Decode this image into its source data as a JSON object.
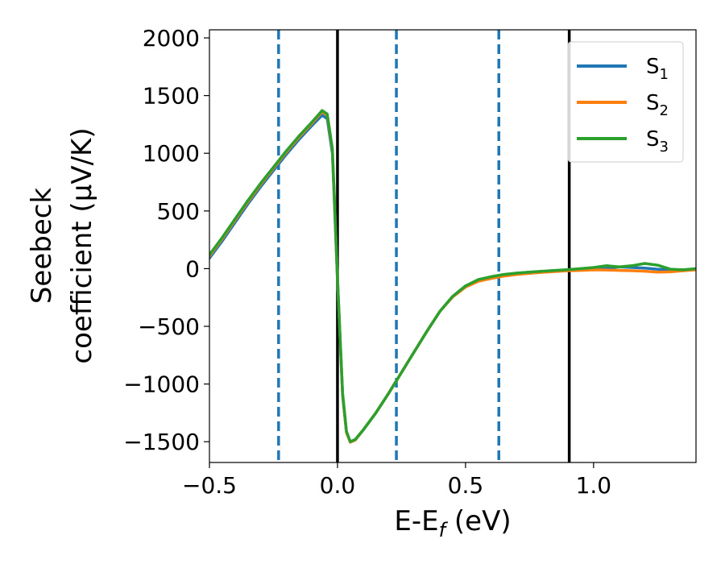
{
  "chart_data": {
    "type": "line",
    "xlabel": "E-E",
    "xlabel_sub": "f",
    "xlabel_unit": " (eV)",
    "ylabel_line1": "Seebeck",
    "ylabel_line2": "coefficient  (μV/K)",
    "xlim": [
      -0.5,
      1.4
    ],
    "ylim": [
      -1680,
      2070
    ],
    "xticks": [
      -0.5,
      0.0,
      0.5,
      1.0
    ],
    "xtick_labels": [
      "−0.5",
      "0.0",
      "0.5",
      "1.0"
    ],
    "yticks": [
      -1500,
      -1000,
      -500,
      0,
      500,
      1000,
      1500,
      2000
    ],
    "ytick_labels": [
      "−1500",
      "−1000",
      "−500",
      "0",
      "500",
      "1000",
      "1500",
      "2000"
    ],
    "grid": false,
    "legend_placement": "top-right",
    "vlines_solid": [
      0.0,
      0.905
    ],
    "vlines_dashed": [
      -0.23,
      0.23,
      0.63
    ],
    "vline_solid_color": "#000000",
    "vline_dashed_color": "#1f77b4",
    "series": [
      {
        "name": "S",
        "sub": "1",
        "color": "#1f77b4",
        "points": [
          [
            -0.5,
            90
          ],
          [
            -0.45,
            240
          ],
          [
            -0.4,
            400
          ],
          [
            -0.35,
            560
          ],
          [
            -0.3,
            710
          ],
          [
            -0.25,
            850
          ],
          [
            -0.2,
            990
          ],
          [
            -0.15,
            1120
          ],
          [
            -0.1,
            1240
          ],
          [
            -0.06,
            1330
          ],
          [
            -0.04,
            1300
          ],
          [
            -0.02,
            1000
          ],
          [
            -0.01,
            450
          ],
          [
            0.0,
            -100
          ],
          [
            0.01,
            -600
          ],
          [
            0.02,
            -1100
          ],
          [
            0.035,
            -1420
          ],
          [
            0.05,
            -1500
          ],
          [
            0.07,
            -1480
          ],
          [
            0.1,
            -1400
          ],
          [
            0.15,
            -1250
          ],
          [
            0.2,
            -1080
          ],
          [
            0.25,
            -900
          ],
          [
            0.3,
            -720
          ],
          [
            0.35,
            -540
          ],
          [
            0.4,
            -370
          ],
          [
            0.45,
            -240
          ],
          [
            0.5,
            -150
          ],
          [
            0.55,
            -100
          ],
          [
            0.6,
            -75
          ],
          [
            0.65,
            -55
          ],
          [
            0.7,
            -40
          ],
          [
            0.75,
            -30
          ],
          [
            0.8,
            -25
          ],
          [
            0.85,
            -18
          ],
          [
            0.9,
            -10
          ],
          [
            0.95,
            -5
          ],
          [
            1.0,
            -10
          ],
          [
            1.05,
            0
          ],
          [
            1.1,
            15
          ],
          [
            1.15,
            10
          ],
          [
            1.2,
            5
          ],
          [
            1.25,
            -5
          ],
          [
            1.3,
            -12
          ],
          [
            1.35,
            -10
          ],
          [
            1.4,
            -5
          ]
        ]
      },
      {
        "name": "S",
        "sub": "2",
        "color": "#ff7f0e",
        "points": [
          [
            -0.5,
            110
          ],
          [
            -0.45,
            260
          ],
          [
            -0.4,
            420
          ],
          [
            -0.35,
            580
          ],
          [
            -0.3,
            730
          ],
          [
            -0.25,
            870
          ],
          [
            -0.2,
            1010
          ],
          [
            -0.15,
            1140
          ],
          [
            -0.1,
            1260
          ],
          [
            -0.06,
            1360
          ],
          [
            -0.04,
            1330
          ],
          [
            -0.02,
            1030
          ],
          [
            -0.01,
            480
          ],
          [
            0.0,
            -80
          ],
          [
            0.01,
            -590
          ],
          [
            0.02,
            -1090
          ],
          [
            0.035,
            -1420
          ],
          [
            0.05,
            -1505
          ],
          [
            0.07,
            -1485
          ],
          [
            0.1,
            -1400
          ],
          [
            0.15,
            -1250
          ],
          [
            0.2,
            -1080
          ],
          [
            0.25,
            -900
          ],
          [
            0.3,
            -720
          ],
          [
            0.35,
            -540
          ],
          [
            0.4,
            -370
          ],
          [
            0.45,
            -245
          ],
          [
            0.5,
            -160
          ],
          [
            0.55,
            -110
          ],
          [
            0.6,
            -85
          ],
          [
            0.65,
            -65
          ],
          [
            0.7,
            -50
          ],
          [
            0.75,
            -40
          ],
          [
            0.8,
            -32
          ],
          [
            0.85,
            -25
          ],
          [
            0.9,
            -18
          ],
          [
            0.95,
            -15
          ],
          [
            1.0,
            -10
          ],
          [
            1.05,
            -12
          ],
          [
            1.1,
            -15
          ],
          [
            1.15,
            -18
          ],
          [
            1.2,
            -22
          ],
          [
            1.25,
            -30
          ],
          [
            1.3,
            -28
          ],
          [
            1.35,
            -18
          ],
          [
            1.4,
            -10
          ]
        ]
      },
      {
        "name": "S",
        "sub": "3",
        "color": "#2ca02c",
        "points": [
          [
            -0.5,
            120
          ],
          [
            -0.45,
            270
          ],
          [
            -0.4,
            430
          ],
          [
            -0.35,
            590
          ],
          [
            -0.3,
            740
          ],
          [
            -0.25,
            880
          ],
          [
            -0.2,
            1020
          ],
          [
            -0.15,
            1150
          ],
          [
            -0.1,
            1270
          ],
          [
            -0.06,
            1370
          ],
          [
            -0.04,
            1340
          ],
          [
            -0.02,
            1040
          ],
          [
            -0.01,
            490
          ],
          [
            0.0,
            -70
          ],
          [
            0.01,
            -580
          ],
          [
            0.02,
            -1080
          ],
          [
            0.035,
            -1410
          ],
          [
            0.05,
            -1500
          ],
          [
            0.07,
            -1480
          ],
          [
            0.1,
            -1400
          ],
          [
            0.15,
            -1250
          ],
          [
            0.2,
            -1080
          ],
          [
            0.25,
            -900
          ],
          [
            0.3,
            -720
          ],
          [
            0.35,
            -540
          ],
          [
            0.4,
            -370
          ],
          [
            0.45,
            -240
          ],
          [
            0.5,
            -150
          ],
          [
            0.55,
            -95
          ],
          [
            0.6,
            -70
          ],
          [
            0.65,
            -50
          ],
          [
            0.7,
            -38
          ],
          [
            0.75,
            -30
          ],
          [
            0.8,
            -22
          ],
          [
            0.85,
            -15
          ],
          [
            0.9,
            -8
          ],
          [
            0.95,
            0
          ],
          [
            1.0,
            10
          ],
          [
            1.05,
            25
          ],
          [
            1.1,
            15
          ],
          [
            1.15,
            25
          ],
          [
            1.2,
            45
          ],
          [
            1.25,
            30
          ],
          [
            1.3,
            -5
          ],
          [
            1.35,
            -10
          ],
          [
            1.4,
            0
          ]
        ]
      }
    ]
  }
}
